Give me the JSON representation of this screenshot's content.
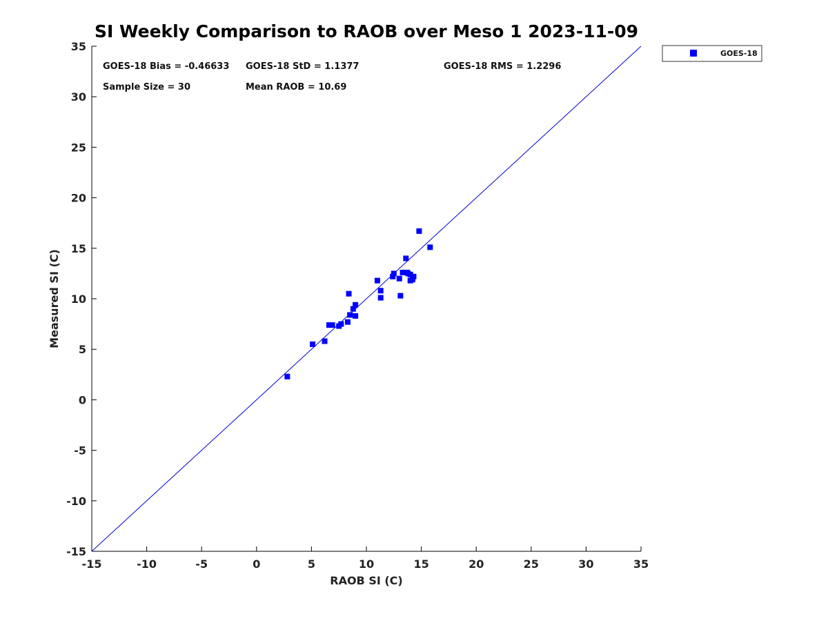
{
  "chart_data": {
    "type": "scatter",
    "title": "SI Weekly Comparison to RAOB over Meso 1 2023-11-09",
    "xlabel": "RAOB SI (C)",
    "ylabel": "Measured SI (C)",
    "xlim": [
      -15,
      35
    ],
    "ylim": [
      -15,
      35
    ],
    "xticks": [
      "-15",
      "-10",
      "-5",
      "0",
      "5",
      "10",
      "15",
      "20",
      "25",
      "30",
      "35"
    ],
    "yticks": [
      "-15",
      "-10",
      "-5",
      "0",
      "5",
      "10",
      "15",
      "20",
      "25",
      "30",
      "35"
    ],
    "grid": false,
    "legend_position": "outside-top-right",
    "reference_line": {
      "from": [
        -15,
        -15
      ],
      "to": [
        35,
        35
      ],
      "color": "#0000cc"
    },
    "series": [
      {
        "name": "GOES-18",
        "color": "#0000ff",
        "marker": "square",
        "points": [
          [
            2.8,
            2.3
          ],
          [
            5.1,
            5.5
          ],
          [
            6.2,
            5.8
          ],
          [
            6.6,
            7.4
          ],
          [
            6.9,
            7.4
          ],
          [
            7.5,
            7.3
          ],
          [
            7.7,
            7.5
          ],
          [
            8.3,
            7.7
          ],
          [
            8.4,
            10.5
          ],
          [
            8.5,
            8.4
          ],
          [
            8.8,
            9.0
          ],
          [
            9.0,
            9.4
          ],
          [
            9.0,
            8.3
          ],
          [
            11.0,
            11.8
          ],
          [
            11.3,
            10.8
          ],
          [
            11.3,
            10.1
          ],
          [
            12.4,
            12.2
          ],
          [
            12.5,
            12.5
          ],
          [
            13.0,
            12.0
          ],
          [
            13.1,
            10.3
          ],
          [
            13.3,
            12.6
          ],
          [
            13.6,
            14.0
          ],
          [
            13.7,
            12.6
          ],
          [
            13.8,
            12.5
          ],
          [
            14.0,
            11.8
          ],
          [
            14.2,
            11.9
          ],
          [
            14.3,
            12.2
          ],
          [
            14.8,
            16.7
          ],
          [
            15.8,
            15.1
          ],
          [
            14.0,
            12.4
          ]
        ]
      }
    ],
    "stats": {
      "bias": "GOES-18 Bias = -0.46633",
      "std": "GOES-18 StD = 1.1377",
      "rms": "GOES-18 RMS = 1.2296",
      "sample_size": "Sample Size = 30",
      "mean_raob": "Mean RAOB = 10.69"
    },
    "legend": [
      {
        "label": "GOES-18",
        "color": "#0000ff",
        "marker": "square"
      }
    ]
  }
}
